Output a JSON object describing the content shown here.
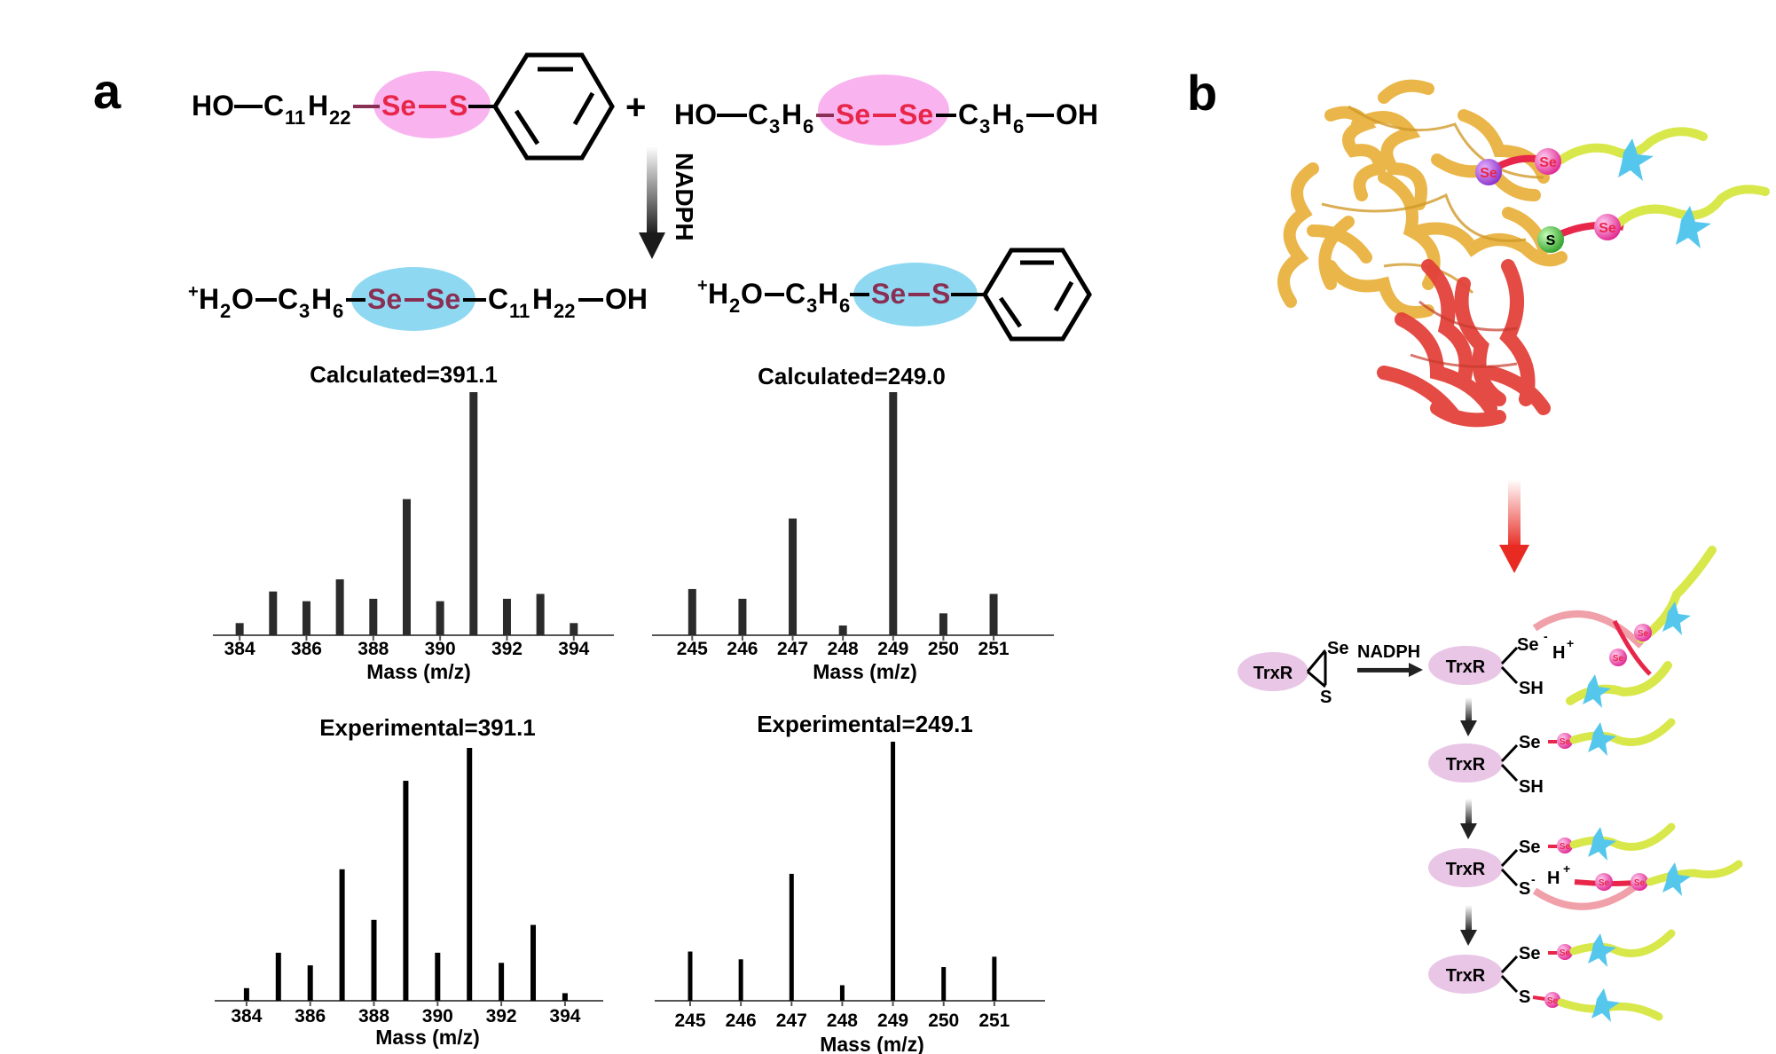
{
  "panels": {
    "a": {
      "label": "a"
    },
    "b": {
      "label": "b"
    }
  },
  "reaction": {
    "reactant1": {
      "prefix": "HO",
      "c": "C",
      "c_sub": "11",
      "h": "H",
      "h_sub": "22",
      "atom1": "Se",
      "atom2": "S"
    },
    "plus": "+",
    "reactant2": {
      "prefix": "HO",
      "c1": "C",
      "c1_sub": "3",
      "h1": "H",
      "h1_sub": "6",
      "atom1": "Se",
      "atom2": "Se",
      "c2": "C",
      "c2_sub": "3",
      "h2": "H",
      "h2_sub": "6",
      "suffix": "OH"
    },
    "reagent": "NADPH",
    "product1": {
      "sup": "+",
      "h2o": "H",
      "h2o_sub": "2",
      "o": "O",
      "c1": "C",
      "c1_sub": "3",
      "h1": "H",
      "h1_sub": "6",
      "atom1": "Se",
      "atom2": "Se",
      "c2": "C",
      "c2_sub": "11",
      "h2": "H",
      "h2_sub": "22",
      "suffix": "OH"
    },
    "product2": {
      "sup": "+",
      "h2o": "H",
      "h2o_sub": "2",
      "o": "O",
      "c1": "C",
      "c1_sub": "3",
      "h1": "H",
      "h1_sub": "6",
      "atom1": "Se",
      "atom2": "S"
    }
  },
  "colors": {
    "pink_highlight": "#f9b4f0",
    "blue_highlight": "#8fd8f2",
    "red_atom": "#e8264a",
    "dark_atom": "#8a2f54",
    "bar": "#2b2b2b",
    "protein_gold": "#e9b340",
    "protein_red": "#e3423a",
    "trxr_fill": "#e9c6e6",
    "arrow_red": "#e82a22"
  },
  "chart_data": [
    {
      "type": "bar",
      "title": "Calculated=391.1",
      "xlabel": "Mass (m/z)",
      "x": [
        384,
        385,
        386,
        387,
        388,
        389,
        390,
        391,
        392,
        393,
        394
      ],
      "values": [
        5,
        18,
        14,
        23,
        15,
        56,
        14,
        100,
        15,
        17,
        5
      ],
      "xticks": [
        "384",
        "386",
        "388",
        "390",
        "392",
        "394"
      ],
      "xlim": [
        383.2,
        395.2
      ],
      "ylim": [
        0,
        100
      ]
    },
    {
      "type": "bar",
      "title": "Calculated=249.0",
      "xlabel": "Mass (m/z)",
      "x": [
        245,
        246,
        247,
        248,
        249,
        250,
        251
      ],
      "values": [
        19,
        15,
        48,
        4,
        100,
        9,
        17
      ],
      "xticks": [
        "245",
        "246",
        "247",
        "248",
        "249",
        "250",
        "251"
      ],
      "xlim": [
        244.2,
        252.2
      ],
      "ylim": [
        0,
        100
      ]
    },
    {
      "type": "bar",
      "title": "Experimental=391.1",
      "xlabel": "Mass (m/z)",
      "x": [
        384,
        385,
        386,
        387,
        388,
        389,
        390,
        391,
        392,
        393,
        394
      ],
      "values": [
        5,
        19,
        14,
        52,
        32,
        87,
        19,
        100,
        15,
        30,
        3
      ],
      "xticks": [
        "384",
        "386",
        "388",
        "390",
        "392",
        "394"
      ],
      "xlim": [
        383.0,
        395.2
      ],
      "ylim": [
        0,
        100
      ]
    },
    {
      "type": "bar",
      "title": "Experimental=249.1",
      "xlabel": "Mass (m/z)",
      "x": [
        245,
        246,
        247,
        248,
        249,
        250,
        251
      ],
      "values": [
        19,
        16,
        49,
        6,
        100,
        13,
        17
      ],
      "xticks": [
        "245",
        "246",
        "247",
        "248",
        "249",
        "250",
        "251"
      ],
      "xlim": [
        244.3,
        252.0
      ],
      "ylim": [
        0,
        100
      ]
    }
  ],
  "protein": {
    "site1": "Se",
    "site2": "S",
    "probe_atom": "Se"
  },
  "mechanism": {
    "enzyme": "TrxR",
    "reagent": "NADPH",
    "state0": {
      "se": "Se",
      "s": "S"
    },
    "state1": {
      "se": "Se",
      "se_sup": "-",
      "h": "H",
      "h_sup": "+",
      "sh": "SH"
    },
    "state2": {
      "se": "Se",
      "sh": "SH"
    },
    "state3": {
      "se": "Se",
      "s": "S",
      "s_sup": "-",
      "h": "H",
      "h_sup": "+"
    },
    "state4": {
      "se": "Se",
      "s": "S"
    },
    "probe_atom": "Se"
  }
}
